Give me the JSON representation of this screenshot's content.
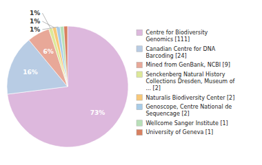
{
  "chart_data": {
    "type": "pie",
    "categories": [
      "Centre for Biodiversity\nGenomics [111]",
      "Canadian Centre for DNA\nBarcoding [24]",
      "Mined from GenBank, NCBI [9]",
      "Senckenberg Natural History\nCollections Dresden, Museum of\n... [2]",
      "Naturalis Biodiversity Center [2]",
      "Genoscope, Centre National de\nSequencage [2]",
      "Wellcome Sanger Institute [1]",
      "University of Geneva [1]"
    ],
    "values": [
      73,
      16,
      6,
      1,
      1,
      1,
      1,
      1
    ],
    "value_labels": [
      "73%",
      "16%",
      "6%",
      "1%",
      "1%",
      "1%",
      null,
      null
    ],
    "colors": [
      "#ddb8dd",
      "#b8cce4",
      "#e8a898",
      "#dde898",
      "#f8c878",
      "#a8cce8",
      "#b8e0b8",
      "#d88060"
    ],
    "data_labels": true,
    "legend": "right"
  }
}
